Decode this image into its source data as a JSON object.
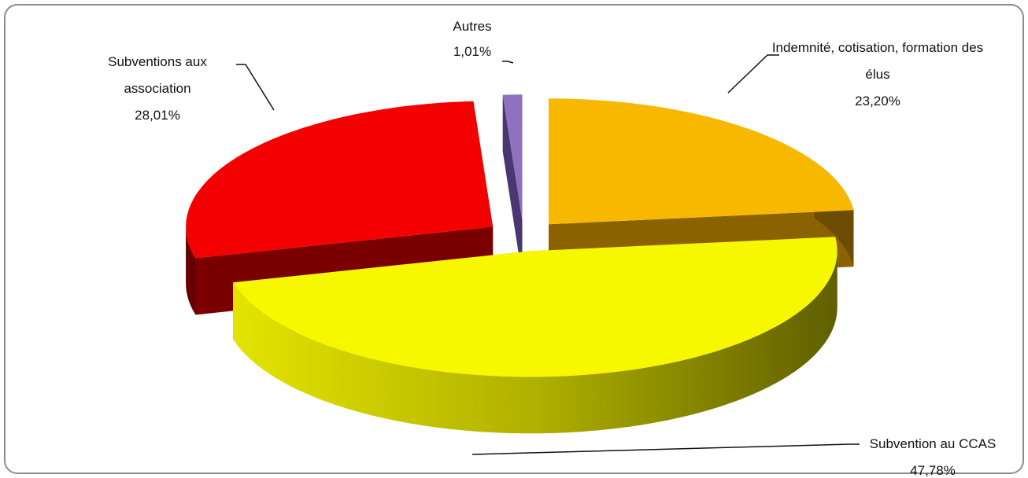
{
  "chart_data": {
    "type": "pie3d",
    "categories": [
      "Indemnité, cotisation, formation des élus",
      "Subvention au CCAS",
      "Subventions aux association",
      "Autres"
    ],
    "values": [
      23.2,
      47.78,
      28.01,
      1.01
    ],
    "value_labels": [
      "23,20%",
      "47,78%",
      "28,01%",
      "1,01%"
    ],
    "colors": [
      "#f9b800",
      "#f7f700",
      "#f50000",
      "#8e72c0"
    ]
  }
}
